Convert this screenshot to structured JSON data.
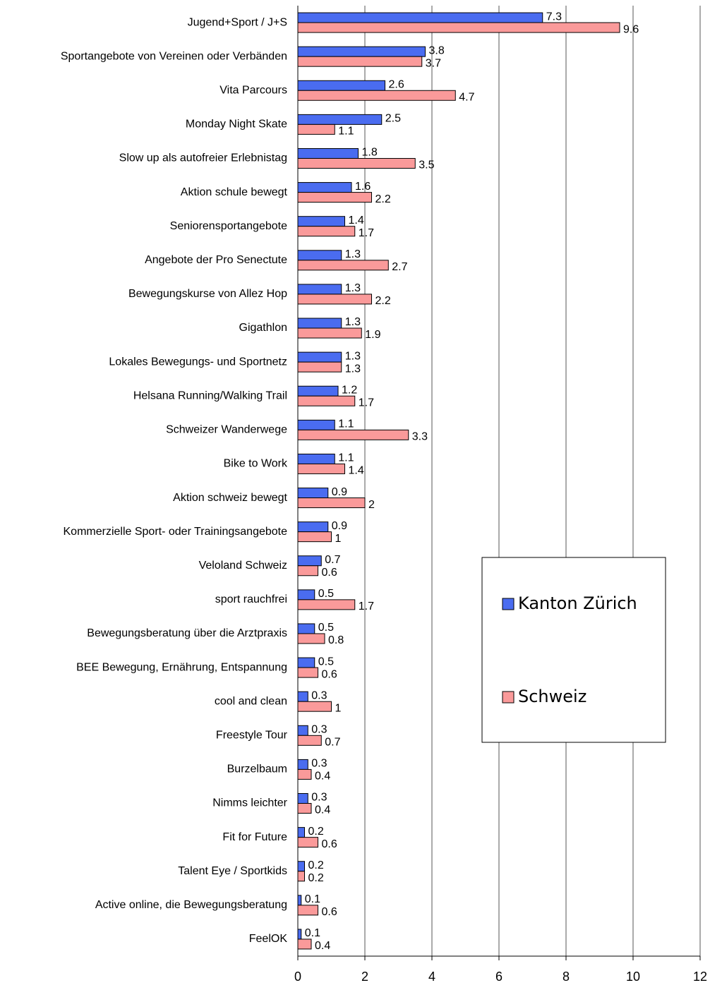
{
  "chart_data": {
    "type": "hbar",
    "categories": [
      "Jugend+Sport / J+S",
      "Sportangebote von Vereinen oder Verbänden",
      "Vita Parcours",
      "Monday Night Skate",
      "Slow up als autofreier Erlebnistag",
      "Aktion schule bewegt",
      "Seniorensportangebote",
      "Angebote der Pro Senectute",
      "Bewegungskurse von Allez Hop",
      "Gigathlon",
      "Lokales Bewegungs- und Sportnetz",
      "Helsana Running/Walking Trail",
      "Schweizer Wanderwege",
      "Bike to Work",
      "Aktion schweiz bewegt",
      "Kommerzielle Sport- oder Trainingsangebote",
      "Veloland Schweiz",
      "sport rauchfrei",
      "Bewegungsberatung über die Arztpraxis",
      "BEE Bewegung, Ernährung, Entspannung",
      "cool and clean",
      "Freestyle Tour",
      "Burzelbaum",
      "Nimms leichter",
      "Fit for Future",
      "Talent Eye / Sportkids",
      "Active online, die Bewegungsberatung",
      "FeelOK"
    ],
    "series": [
      {
        "name": "Kanton Zürich",
        "color": "#4a6cf0",
        "values": [
          7.3,
          3.8,
          2.6,
          2.5,
          1.8,
          1.6,
          1.4,
          1.3,
          1.3,
          1.3,
          1.3,
          1.2,
          1.1,
          1.1,
          0.9,
          0.9,
          0.7,
          0.5,
          0.5,
          0.5,
          0.3,
          0.3,
          0.3,
          0.3,
          0.2,
          0.2,
          0.1,
          0.1
        ]
      },
      {
        "name": "Schweiz",
        "color": "#fa9a9a",
        "values": [
          9.6,
          3.7,
          4.7,
          1.1,
          3.5,
          2.2,
          1.7,
          2.7,
          2.2,
          1.9,
          1.3,
          1.7,
          3.3,
          1.4,
          2,
          1,
          0.6,
          1.7,
          0.8,
          0.6,
          1,
          0.7,
          0.4,
          0.4,
          0.6,
          0.2,
          0.6,
          0.4
        ]
      }
    ],
    "xlim": [
      0,
      12
    ],
    "xticks": [
      0,
      2,
      4,
      6,
      8,
      10,
      12
    ],
    "grid": true,
    "legend_position": "right"
  }
}
